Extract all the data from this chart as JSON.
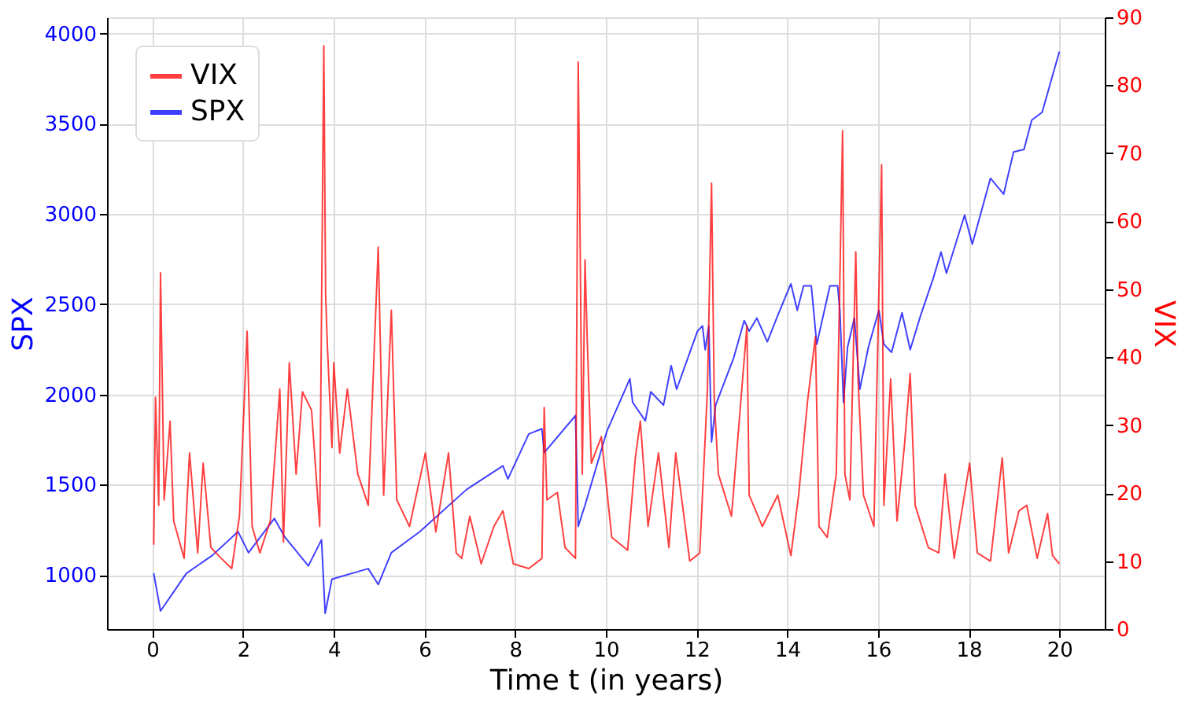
{
  "chart_data": {
    "type": "line",
    "xlabel": "Time t (in years)",
    "ylabel": "SPX",
    "y2label": "VIX",
    "xlim": [
      -1,
      21
    ],
    "xticks": [
      0,
      2,
      4,
      6,
      8,
      10,
      12,
      14,
      16,
      18,
      20
    ],
    "ylim": [
      700,
      4090
    ],
    "yticks": [
      1000,
      1500,
      2000,
      2500,
      3000,
      3500,
      4000
    ],
    "y2lim": [
      0,
      90
    ],
    "y2ticks": [
      0,
      10,
      20,
      30,
      40,
      50,
      60,
      70,
      80,
      90
    ],
    "grid": true,
    "legend": "top left",
    "marker": "none",
    "line_style": "solid",
    "series": [
      {
        "name": "VIX",
        "color": "#ff0000",
        "axis": "y2",
        "x": [
          0.03,
          0.07,
          0.14,
          0.18,
          0.26,
          0.39,
          0.47,
          0.7,
          0.82,
          1.0,
          1.12,
          1.29,
          1.52,
          1.75,
          1.92,
          2.09,
          2.2,
          2.37,
          2.6,
          2.81,
          2.89,
          3.02,
          3.17,
          3.31,
          3.51,
          3.69,
          3.78,
          3.82,
          3.86,
          3.96,
          4.0,
          4.13,
          4.3,
          4.53,
          4.76,
          4.98,
          5.1,
          5.27,
          5.39,
          5.67,
          6.02,
          6.25,
          6.53,
          6.7,
          6.82,
          7.0,
          7.25,
          7.53,
          7.73,
          7.96,
          8.3,
          8.59,
          8.64,
          8.7,
          8.93,
          9.1,
          9.33,
          9.39,
          9.42,
          9.48,
          9.54,
          9.59,
          9.68,
          9.9,
          10.13,
          10.48,
          10.65,
          10.76,
          10.93,
          11.16,
          11.39,
          11.54,
          11.85,
          12.07,
          12.24,
          12.33,
          12.39,
          12.48,
          12.77,
          13.11,
          13.16,
          13.45,
          13.79,
          14.08,
          14.25,
          14.45,
          14.62,
          14.7,
          14.88,
          15.08,
          15.22,
          15.27,
          15.38,
          15.51,
          15.56,
          15.68,
          15.91,
          16.08,
          16.13,
          16.28,
          16.42,
          16.59,
          16.71,
          16.82,
          17.11,
          17.34,
          17.48,
          17.68,
          18.02,
          18.19,
          18.48,
          18.74,
          18.88,
          19.11,
          19.28,
          19.51,
          19.74,
          19.85,
          20.0
        ],
        "values": [
          12.4,
          34.1,
          18.2,
          52.4,
          19,
          30.6,
          15.9,
          10.4,
          25.9,
          11.2,
          24.4,
          12,
          10.4,
          8.9,
          16.6,
          43.8,
          15.1,
          11.2,
          15.9,
          35.3,
          12.8,
          39.2,
          22.8,
          34.9,
          32.2,
          15.1,
          85.8,
          49.3,
          41.5,
          26.7,
          39.2,
          25.9,
          35.3,
          22.8,
          18.2,
          56.2,
          19.7,
          46.9,
          19,
          15.1,
          25.9,
          14.3,
          25.9,
          11.2,
          10.4,
          16.6,
          9.6,
          15.1,
          17.4,
          9.6,
          8.9,
          10.4,
          32.6,
          19,
          20.1,
          12,
          10.4,
          83.4,
          65.6,
          22.8,
          54.3,
          42.3,
          24.4,
          28.3,
          13.5,
          11.6,
          25.2,
          30.6,
          15.1,
          25.9,
          12,
          25.9,
          10,
          11.2,
          35.3,
          65.6,
          33.7,
          22.8,
          16.6,
          44.6,
          19.7,
          15.1,
          19.7,
          10.8,
          19.7,
          33.7,
          43,
          15.1,
          13.5,
          22.8,
          73.3,
          22.8,
          19,
          55.5,
          36.8,
          19.7,
          15.1,
          68.3,
          18.2,
          36.8,
          15.9,
          27.5,
          37.6,
          18.2,
          12,
          11.2,
          22.8,
          10.4,
          24.4,
          11.2,
          10,
          25.2,
          11.2,
          17.4,
          18.2,
          10.4,
          17,
          10.8,
          9.6
        ]
      },
      {
        "name": "SPX",
        "color": "#0000ff",
        "x": [
          0.03,
          0.18,
          0.39,
          0.75,
          1.32,
          1.89,
          2.12,
          2.69,
          2.92,
          3.44,
          3.73,
          3.81,
          3.96,
          4.76,
          4.98,
          5.27,
          5.9,
          6.93,
          7.73,
          7.84,
          8.3,
          8.59,
          8.64,
          9.33,
          9.39,
          9.54,
          10.02,
          10.53,
          10.59,
          10.87,
          10.99,
          11.27,
          11.44,
          11.56,
          12.02,
          12.13,
          12.19,
          12.27,
          12.33,
          12.42,
          12.82,
          13.05,
          13.16,
          13.33,
          13.56,
          13.79,
          14.08,
          14.22,
          14.36,
          14.53,
          14.65,
          14.94,
          15.11,
          15.16,
          15.24,
          15.33,
          15.48,
          15.6,
          15.79,
          16.02,
          16.13,
          16.3,
          16.53,
          16.71,
          16.94,
          17.22,
          17.39,
          17.51,
          17.91,
          18.08,
          18.48,
          18.77,
          18.99,
          19.22,
          19.39,
          19.62,
          19.85,
          20.0
        ],
        "values": [
          1009,
          800,
          877,
          1009,
          1108,
          1240,
          1123,
          1313,
          1210,
          1050,
          1195,
          787,
          977,
          1035,
          947,
          1123,
          1240,
          1474,
          1605,
          1532,
          1781,
          1810,
          1678,
          1883,
          1269,
          1386,
          1795,
          2087,
          1956,
          1854,
          2015,
          1941,
          2160,
          2029,
          2351,
          2380,
          2248,
          2380,
          1737,
          1941,
          2204,
          2409,
          2351,
          2423,
          2292,
          2438,
          2613,
          2467,
          2602,
          2602,
          2278,
          2602,
          2602,
          2467,
          1956,
          2263,
          2423,
          2029,
          2263,
          2467,
          2278,
          2234,
          2453,
          2248,
          2438,
          2645,
          2789,
          2672,
          2994,
          2833,
          3198,
          3110,
          3344,
          3358,
          3520,
          3564,
          3768,
          3900
        ]
      }
    ]
  }
}
